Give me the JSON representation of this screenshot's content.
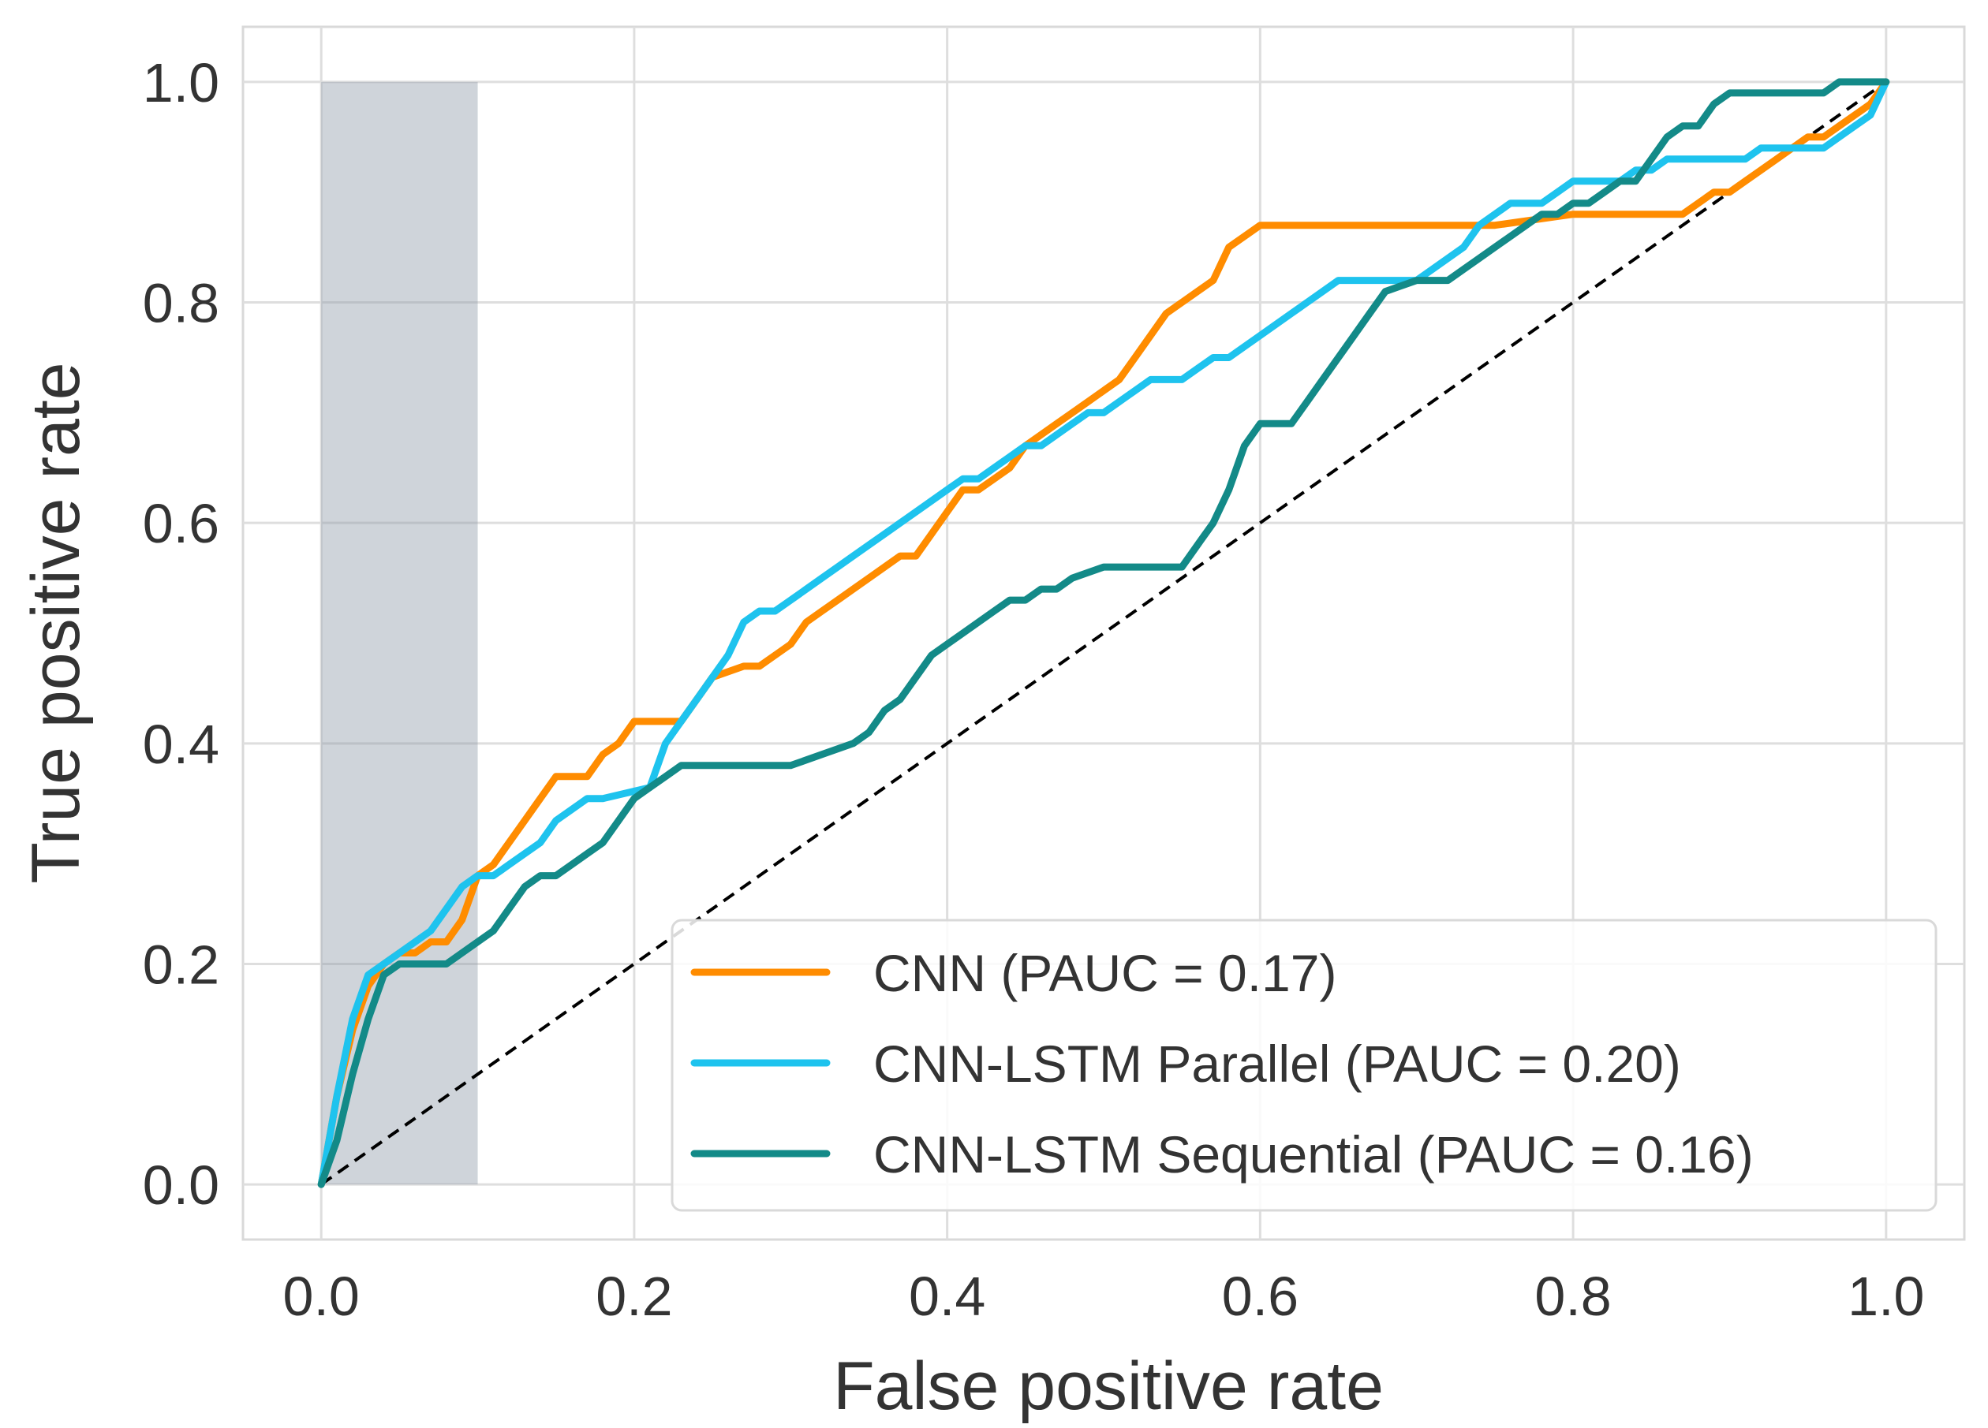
{
  "chart_data": {
    "type": "line",
    "xlabel": "False positive rate",
    "ylabel": "True positive rate",
    "xlim": [
      -0.05,
      1.05
    ],
    "ylim": [
      -0.05,
      1.05
    ],
    "xticks": [
      "0.0",
      "0.2",
      "0.4",
      "0.6",
      "0.8",
      "1.0"
    ],
    "yticks": [
      "0.0",
      "0.2",
      "0.4",
      "0.6",
      "0.8",
      "1.0"
    ],
    "grid": true,
    "legend_position": "lower-right",
    "shaded_region": {
      "x": [
        0.0,
        0.1
      ],
      "y": [
        0.0,
        1.0
      ],
      "color": "#8c99a6"
    },
    "reference_line": {
      "x": [
        0,
        1
      ],
      "y": [
        0,
        1
      ],
      "style": "dashed",
      "color": "#000000"
    },
    "series": [
      {
        "name": "CNN  (PAUC = 0.17)",
        "color": "#ff8c00",
        "x": [
          0,
          0.01,
          0.02,
          0.03,
          0.04,
          0.05,
          0.06,
          0.07,
          0.08,
          0.09,
          0.1,
          0.11,
          0.12,
          0.13,
          0.14,
          0.15,
          0.17,
          0.18,
          0.19,
          0.2,
          0.23,
          0.24,
          0.25,
          0.27,
          0.28,
          0.29,
          0.3,
          0.31,
          0.32,
          0.33,
          0.34,
          0.35,
          0.36,
          0.37,
          0.38,
          0.39,
          0.4,
          0.41,
          0.42,
          0.43,
          0.44,
          0.45,
          0.46,
          0.47,
          0.48,
          0.49,
          0.5,
          0.51,
          0.52,
          0.53,
          0.54,
          0.55,
          0.56,
          0.57,
          0.58,
          0.59,
          0.6,
          0.61,
          0.65,
          0.7,
          0.75,
          0.8,
          0.85,
          0.87,
          0.88,
          0.89,
          0.9,
          0.91,
          0.92,
          0.93,
          0.94,
          0.95,
          0.96,
          0.97,
          0.98,
          0.99,
          1.0
        ],
        "y": [
          0,
          0.08,
          0.14,
          0.18,
          0.2,
          0.21,
          0.21,
          0.22,
          0.22,
          0.24,
          0.28,
          0.29,
          0.31,
          0.33,
          0.35,
          0.37,
          0.37,
          0.39,
          0.4,
          0.42,
          0.42,
          0.44,
          0.46,
          0.47,
          0.47,
          0.48,
          0.49,
          0.51,
          0.52,
          0.53,
          0.54,
          0.55,
          0.56,
          0.57,
          0.57,
          0.59,
          0.61,
          0.63,
          0.63,
          0.64,
          0.65,
          0.67,
          0.68,
          0.69,
          0.7,
          0.71,
          0.72,
          0.73,
          0.75,
          0.77,
          0.79,
          0.8,
          0.81,
          0.82,
          0.85,
          0.86,
          0.87,
          0.87,
          0.87,
          0.87,
          0.87,
          0.88,
          0.88,
          0.88,
          0.89,
          0.9,
          0.9,
          0.91,
          0.92,
          0.93,
          0.94,
          0.95,
          0.95,
          0.96,
          0.97,
          0.98,
          1.0
        ]
      },
      {
        "name": "CNN-LSTM Parallel (PAUC = 0.20)",
        "color": "#1ec3ee",
        "x": [
          0,
          0.01,
          0.02,
          0.03,
          0.05,
          0.07,
          0.08,
          0.09,
          0.1,
          0.11,
          0.12,
          0.13,
          0.14,
          0.15,
          0.16,
          0.17,
          0.18,
          0.21,
          0.22,
          0.23,
          0.24,
          0.25,
          0.26,
          0.27,
          0.28,
          0.29,
          0.3,
          0.31,
          0.32,
          0.33,
          0.34,
          0.35,
          0.36,
          0.37,
          0.38,
          0.39,
          0.4,
          0.41,
          0.42,
          0.43,
          0.44,
          0.45,
          0.46,
          0.47,
          0.48,
          0.49,
          0.5,
          0.51,
          0.52,
          0.53,
          0.54,
          0.55,
          0.56,
          0.57,
          0.58,
          0.59,
          0.6,
          0.61,
          0.62,
          0.63,
          0.64,
          0.65,
          0.66,
          0.67,
          0.68,
          0.69,
          0.7,
          0.71,
          0.72,
          0.73,
          0.74,
          0.75,
          0.76,
          0.77,
          0.78,
          0.79,
          0.8,
          0.81,
          0.82,
          0.83,
          0.84,
          0.85,
          0.86,
          0.87,
          0.88,
          0.89,
          0.9,
          0.91,
          0.92,
          0.93,
          0.94,
          0.95,
          0.96,
          0.97,
          0.98,
          0.99,
          1.0
        ],
        "y": [
          0,
          0.08,
          0.15,
          0.19,
          0.21,
          0.23,
          0.25,
          0.27,
          0.28,
          0.28,
          0.29,
          0.3,
          0.31,
          0.33,
          0.34,
          0.35,
          0.35,
          0.36,
          0.4,
          0.42,
          0.44,
          0.46,
          0.48,
          0.51,
          0.52,
          0.52,
          0.53,
          0.54,
          0.55,
          0.56,
          0.57,
          0.58,
          0.59,
          0.6,
          0.61,
          0.62,
          0.63,
          0.64,
          0.64,
          0.65,
          0.66,
          0.67,
          0.67,
          0.68,
          0.69,
          0.7,
          0.7,
          0.71,
          0.72,
          0.73,
          0.73,
          0.73,
          0.74,
          0.75,
          0.75,
          0.76,
          0.77,
          0.78,
          0.79,
          0.8,
          0.81,
          0.82,
          0.82,
          0.82,
          0.82,
          0.82,
          0.82,
          0.83,
          0.84,
          0.85,
          0.87,
          0.88,
          0.89,
          0.89,
          0.89,
          0.9,
          0.91,
          0.91,
          0.91,
          0.91,
          0.92,
          0.92,
          0.93,
          0.93,
          0.93,
          0.93,
          0.93,
          0.93,
          0.94,
          0.94,
          0.94,
          0.94,
          0.94,
          0.95,
          0.96,
          0.97,
          1.0
        ]
      },
      {
        "name": "CNN-LSTM Sequential (PAUC = 0.16)",
        "color": "#138a88",
        "x": [
          0,
          0.01,
          0.02,
          0.03,
          0.04,
          0.05,
          0.06,
          0.07,
          0.08,
          0.09,
          0.1,
          0.11,
          0.12,
          0.13,
          0.14,
          0.15,
          0.16,
          0.17,
          0.18,
          0.19,
          0.2,
          0.21,
          0.22,
          0.23,
          0.24,
          0.26,
          0.28,
          0.3,
          0.32,
          0.34,
          0.35,
          0.36,
          0.37,
          0.38,
          0.39,
          0.4,
          0.41,
          0.42,
          0.43,
          0.44,
          0.45,
          0.46,
          0.47,
          0.48,
          0.5,
          0.52,
          0.54,
          0.55,
          0.56,
          0.57,
          0.58,
          0.59,
          0.6,
          0.61,
          0.62,
          0.63,
          0.64,
          0.65,
          0.66,
          0.67,
          0.68,
          0.7,
          0.72,
          0.73,
          0.74,
          0.75,
          0.76,
          0.77,
          0.78,
          0.79,
          0.8,
          0.81,
          0.82,
          0.83,
          0.84,
          0.85,
          0.86,
          0.87,
          0.88,
          0.89,
          0.9,
          0.92,
          0.94,
          0.96,
          0.97,
          0.98,
          0.99,
          1.0
        ],
        "y": [
          0,
          0.04,
          0.1,
          0.15,
          0.19,
          0.2,
          0.2,
          0.2,
          0.2,
          0.21,
          0.22,
          0.23,
          0.25,
          0.27,
          0.28,
          0.28,
          0.29,
          0.3,
          0.31,
          0.33,
          0.35,
          0.36,
          0.37,
          0.38,
          0.38,
          0.38,
          0.38,
          0.38,
          0.39,
          0.4,
          0.41,
          0.43,
          0.44,
          0.46,
          0.48,
          0.49,
          0.5,
          0.51,
          0.52,
          0.53,
          0.53,
          0.54,
          0.54,
          0.55,
          0.56,
          0.56,
          0.56,
          0.56,
          0.58,
          0.6,
          0.63,
          0.67,
          0.69,
          0.69,
          0.69,
          0.71,
          0.73,
          0.75,
          0.77,
          0.79,
          0.81,
          0.82,
          0.82,
          0.83,
          0.84,
          0.85,
          0.86,
          0.87,
          0.88,
          0.88,
          0.89,
          0.89,
          0.9,
          0.91,
          0.91,
          0.93,
          0.95,
          0.96,
          0.96,
          0.98,
          0.99,
          0.99,
          0.99,
          0.99,
          1.0,
          1.0,
          1.0,
          1.0
        ]
      }
    ]
  }
}
